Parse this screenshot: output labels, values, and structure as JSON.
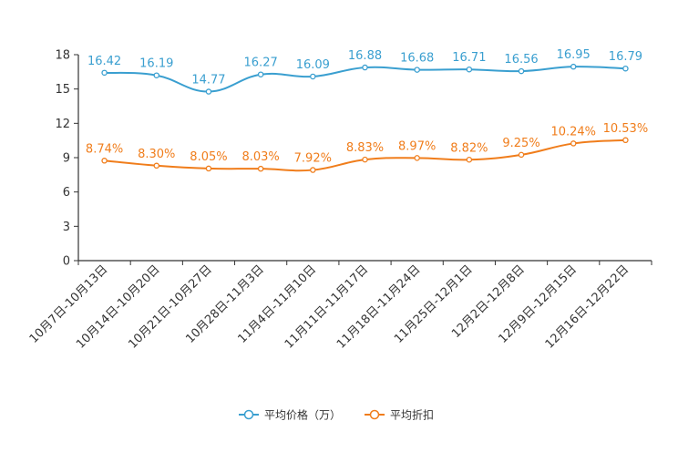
{
  "chart_data": {
    "type": "line",
    "categories": [
      "10月7日-10月13日",
      "10月14日-10月20日",
      "10月21日-10月27日",
      "10月28日-11月3日",
      "11月4日-11月10日",
      "11月11日-11月17日",
      "11月18日-11月24日",
      "11月25日-12月1日",
      "12月2日-12月8日",
      "12月9日-12月15日",
      "12月16日-12月22日"
    ],
    "y_ticks": [
      "0",
      "3",
      "6",
      "9",
      "12",
      "15",
      "18"
    ],
    "ylim": [
      0,
      18
    ],
    "legend_position": "bottom-center",
    "series": [
      {
        "name": "平均价格（万）",
        "color": "#3a9fd0",
        "values": [
          16.42,
          16.19,
          14.77,
          16.27,
          16.09,
          16.88,
          16.68,
          16.71,
          16.56,
          16.95,
          16.79
        ],
        "labels": [
          "16.42",
          "16.19",
          "14.77",
          "16.27",
          "16.09",
          "16.88",
          "16.68",
          "16.71",
          "16.56",
          "16.95",
          "16.79"
        ]
      },
      {
        "name": "平均折扣",
        "color": "#f07d1b",
        "values": [
          8.74,
          8.3,
          8.05,
          8.03,
          7.92,
          8.83,
          8.97,
          8.82,
          9.25,
          10.24,
          10.53
        ],
        "labels": [
          "8.74%",
          "8.30%",
          "8.05%",
          "8.03%",
          "7.92%",
          "8.83%",
          "8.97%",
          "8.82%",
          "9.25%",
          "10.24%",
          "10.53%"
        ]
      }
    ]
  }
}
